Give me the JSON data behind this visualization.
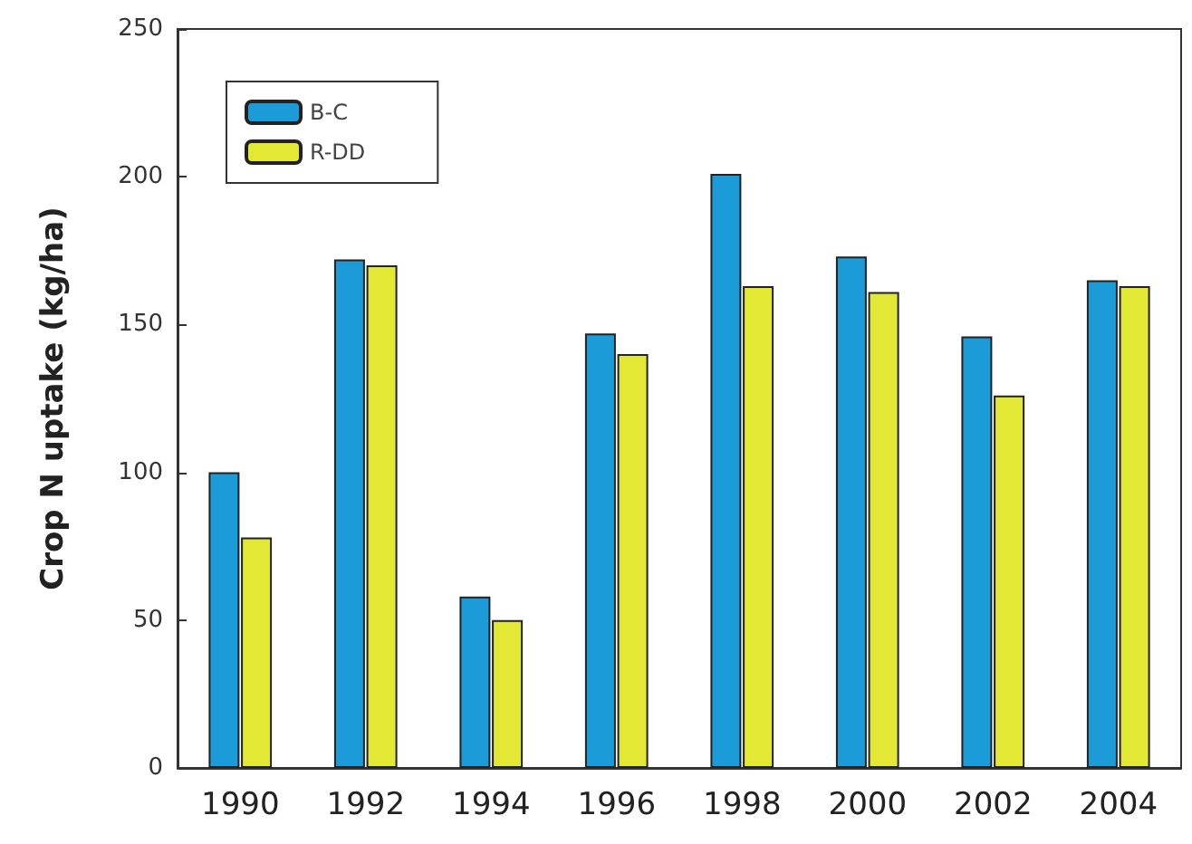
{
  "chart_data": {
    "type": "bar",
    "ylabel": "Crop N uptake (kg/ha)",
    "categories": [
      "1990",
      "1992",
      "1994",
      "1996",
      "1998",
      "2000",
      "2002",
      "2004"
    ],
    "series": [
      {
        "name": "B-C",
        "color": "#1b9bd7",
        "values": [
          100,
          172,
          58,
          147,
          201,
          173,
          146,
          165
        ]
      },
      {
        "name": "R-DD",
        "color": "#e2e834",
        "values": [
          78,
          170,
          50,
          140,
          163,
          161,
          126,
          163
        ]
      }
    ],
    "ylim": [
      0,
      250
    ],
    "yticks": [
      0,
      50,
      100,
      150,
      200,
      250
    ],
    "grid": false,
    "legend": "top left"
  }
}
